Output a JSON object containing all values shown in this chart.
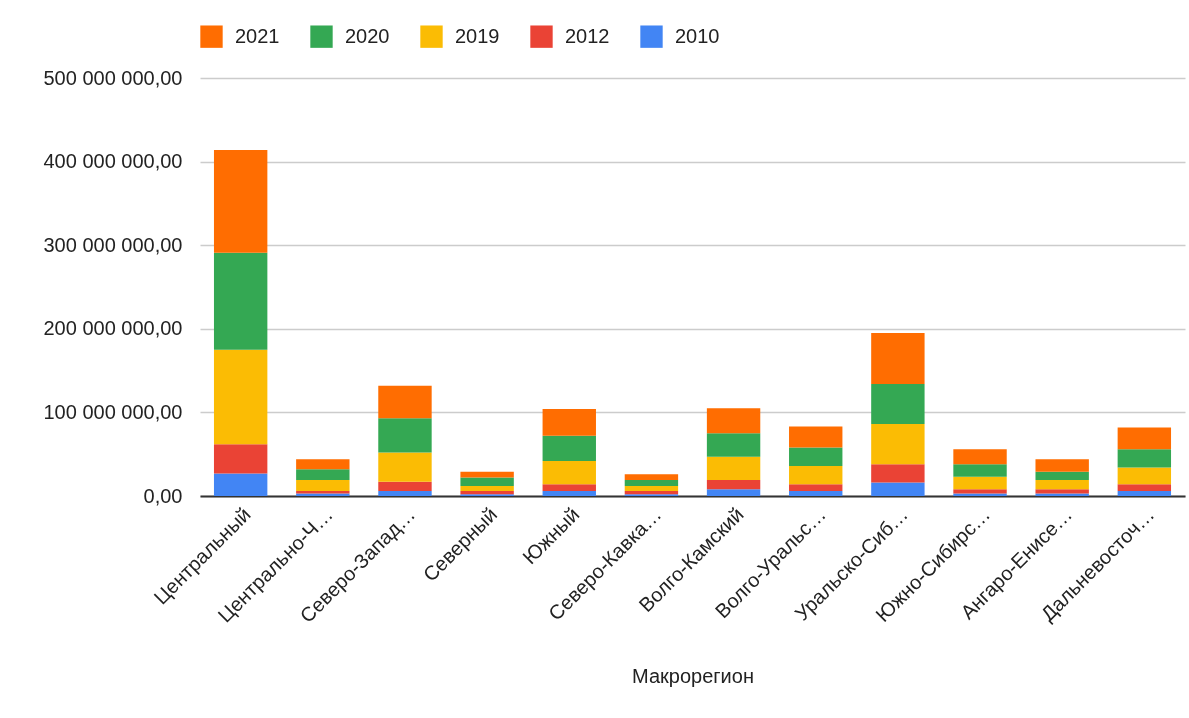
{
  "chart_data": {
    "type": "bar",
    "stacked": true,
    "xlabel": "Макрорегион",
    "categories": [
      "Центральный",
      "Центрально-Ч…",
      "Северо-Запад…",
      "Северный",
      "Южный",
      "Северо-Кавка…",
      "Волго-Камский",
      "Волго-Уральс…",
      "Уральско-Сиб…",
      "Южно-Сибирс…",
      "Ангаро-Енисе…",
      "Дальневосточ…"
    ],
    "series": [
      {
        "name": "2010",
        "color": "#4285f4",
        "values": [
          27000000,
          3000000,
          6000000,
          2000000,
          6000000,
          2000000,
          8000000,
          6000000,
          16000000,
          3000000,
          3000000,
          6000000
        ]
      },
      {
        "name": "2012",
        "color": "#ea4335",
        "values": [
          35000000,
          3000000,
          11000000,
          4000000,
          8000000,
          4000000,
          11000000,
          8000000,
          22000000,
          5000000,
          5000000,
          8000000
        ]
      },
      {
        "name": "2019",
        "color": "#fbbc04",
        "values": [
          113000000,
          13000000,
          35000000,
          6000000,
          28000000,
          6000000,
          28000000,
          22000000,
          48000000,
          15000000,
          11000000,
          20000000
        ]
      },
      {
        "name": "2020",
        "color": "#34a853",
        "values": [
          116000000,
          13000000,
          41000000,
          10000000,
          30000000,
          7000000,
          28000000,
          22000000,
          48000000,
          15000000,
          10000000,
          22000000
        ]
      },
      {
        "name": "2021",
        "color": "#ff6d01",
        "values": [
          123000000,
          12000000,
          39000000,
          7000000,
          32000000,
          7000000,
          30000000,
          25000000,
          61000000,
          18000000,
          15000000,
          26000000
        ]
      }
    ],
    "ylim": [
      0,
      500000000
    ],
    "yticks": [
      {
        "value": 0,
        "label": "0,00"
      },
      {
        "value": 100000000,
        "label": "100 000 000,00"
      },
      {
        "value": 200000000,
        "label": "200 000 000,00"
      },
      {
        "value": 300000000,
        "label": "300 000 000,00"
      },
      {
        "value": 400000000,
        "label": "400 000 000,00"
      },
      {
        "value": 500000000,
        "label": "500 000 000,00"
      }
    ],
    "grid": "y",
    "legend": "top"
  }
}
